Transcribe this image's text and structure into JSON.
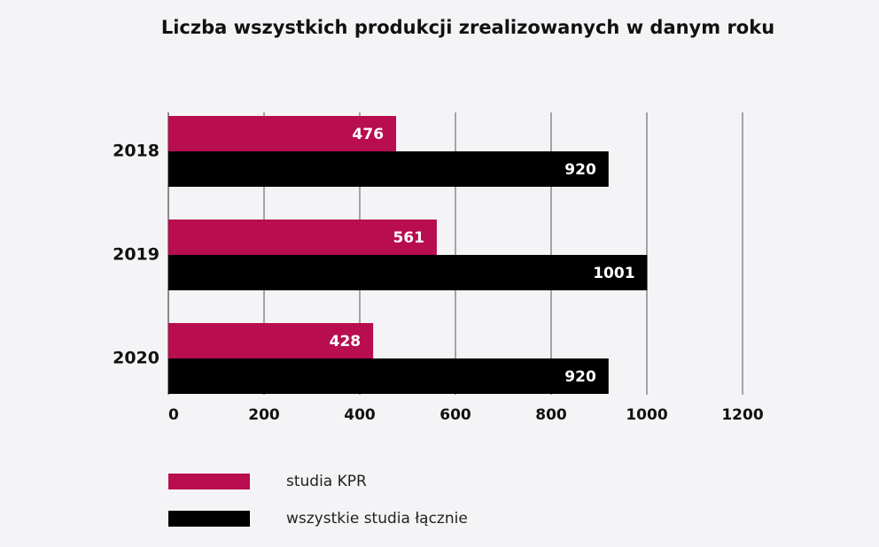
{
  "chart_data": {
    "type": "bar",
    "orientation": "horizontal",
    "title": "Liczba wszystkich produkcji zrealizowanych w danym roku",
    "categories": [
      "2018",
      "2019",
      "2020"
    ],
    "series": [
      {
        "name": "studia KPR",
        "color": "#b80d4e",
        "values": [
          476,
          561,
          428
        ]
      },
      {
        "name": "wszystkie studia łącznie",
        "color": "#000000",
        "values": [
          920,
          1001,
          920
        ]
      }
    ],
    "xlim": [
      0,
      1200
    ],
    "xticks": [
      0,
      200,
      400,
      600,
      800,
      1000,
      1200
    ],
    "grid": true
  }
}
